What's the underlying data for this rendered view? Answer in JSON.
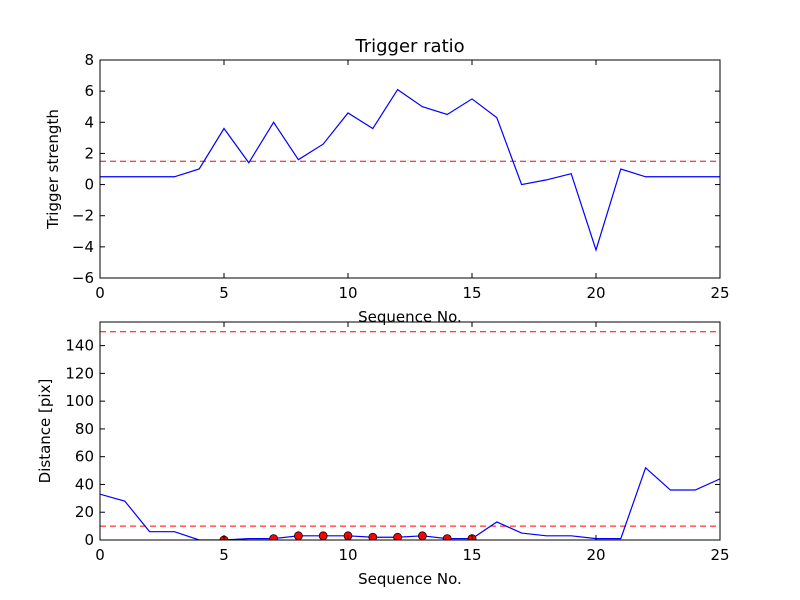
{
  "chart_data": [
    {
      "type": "line",
      "title": "Trigger ratio",
      "xlabel": "Sequence No.",
      "ylabel": "Trigger strength",
      "xlim": [
        0,
        25
      ],
      "ylim": [
        -6,
        8
      ],
      "xticks": [
        0,
        5,
        10,
        15,
        20,
        25
      ],
      "yticks": [
        -6,
        -4,
        -2,
        0,
        2,
        4,
        6,
        8
      ],
      "grid": false,
      "series": [
        {
          "style": "solid",
          "color": "#0000ff",
          "x": [
            0,
            1,
            2,
            3,
            4,
            5,
            6,
            7,
            8,
            9,
            10,
            11,
            12,
            13,
            14,
            15,
            16,
            17,
            18,
            19,
            20,
            21,
            22,
            23,
            24,
            25
          ],
          "y": [
            0.5,
            0.5,
            0.5,
            0.5,
            1.0,
            3.6,
            1.4,
            4.0,
            1.6,
            2.6,
            4.6,
            3.6,
            6.1,
            5.0,
            4.5,
            5.5,
            4.3,
            0.0,
            0.3,
            0.7,
            -4.2,
            1.0,
            0.5,
            0.5,
            0.5,
            0.5
          ]
        }
      ],
      "hlines": [
        {
          "y": 1.5,
          "color": "#ff0000",
          "style": "dashed"
        }
      ]
    },
    {
      "type": "line",
      "title": "",
      "xlabel": "Sequence No.",
      "ylabel": "Distance [pix]",
      "xlim": [
        0,
        25
      ],
      "ylim": [
        0,
        157
      ],
      "xticks": [
        0,
        5,
        10,
        15,
        20,
        25
      ],
      "yticks": [
        0,
        20,
        40,
        60,
        80,
        100,
        120,
        140
      ],
      "grid": false,
      "series": [
        {
          "style": "solid",
          "color": "#0000ff",
          "x": [
            0,
            1,
            2,
            3,
            4,
            5,
            6,
            7,
            8,
            9,
            10,
            11,
            12,
            13,
            14,
            15,
            16,
            17,
            18,
            19,
            20,
            21,
            22,
            23,
            24,
            25
          ],
          "y": [
            33,
            28,
            6,
            6,
            0,
            0,
            1,
            1,
            3,
            3,
            3,
            2,
            2,
            3,
            1,
            1,
            13,
            5,
            3,
            3,
            1,
            1,
            52,
            36,
            36,
            44
          ]
        },
        {
          "style": "markers",
          "color": "#ff0000",
          "x": [
            5,
            7,
            8,
            9,
            10,
            11,
            12,
            13,
            14,
            15
          ],
          "y": [
            0,
            1,
            3,
            3,
            3,
            2,
            2,
            3,
            1,
            1
          ]
        }
      ],
      "hlines": [
        {
          "y": 150,
          "color": "#ff0000",
          "style": "dashed"
        },
        {
          "y": 10,
          "color": "#ff0000",
          "style": "dashed"
        }
      ]
    }
  ]
}
